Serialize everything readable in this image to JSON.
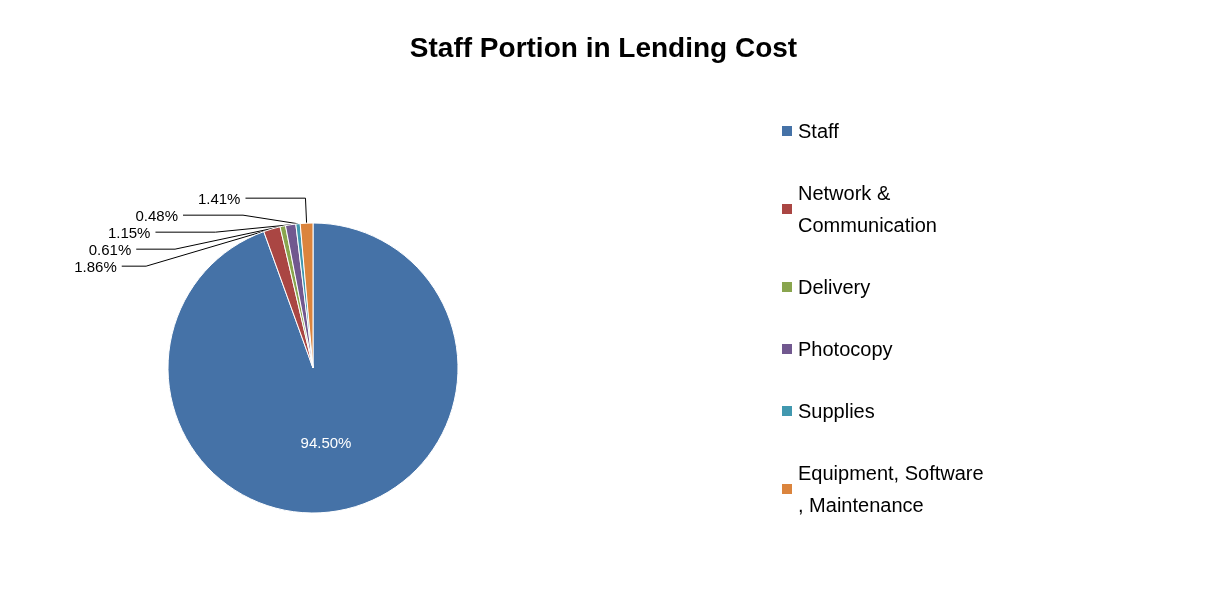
{
  "chart_data": {
    "type": "pie",
    "title": "Staff Portion in Lending Cost",
    "categories": [
      "Staff",
      "Network & Communication",
      "Delivery",
      "Photocopy",
      "Supplies",
      "Equipment, Software, Maintenance"
    ],
    "values": [
      94.5,
      1.86,
      0.61,
      1.15,
      0.48,
      1.41
    ],
    "value_labels": [
      "94.50%",
      "1.86%",
      "0.61%",
      "1.15%",
      "0.48%",
      "1.41%"
    ],
    "colors": [
      "#4572a7",
      "#aa4643",
      "#89a54e",
      "#71588f",
      "#4198af",
      "#db843d"
    ],
    "legend": "right"
  }
}
